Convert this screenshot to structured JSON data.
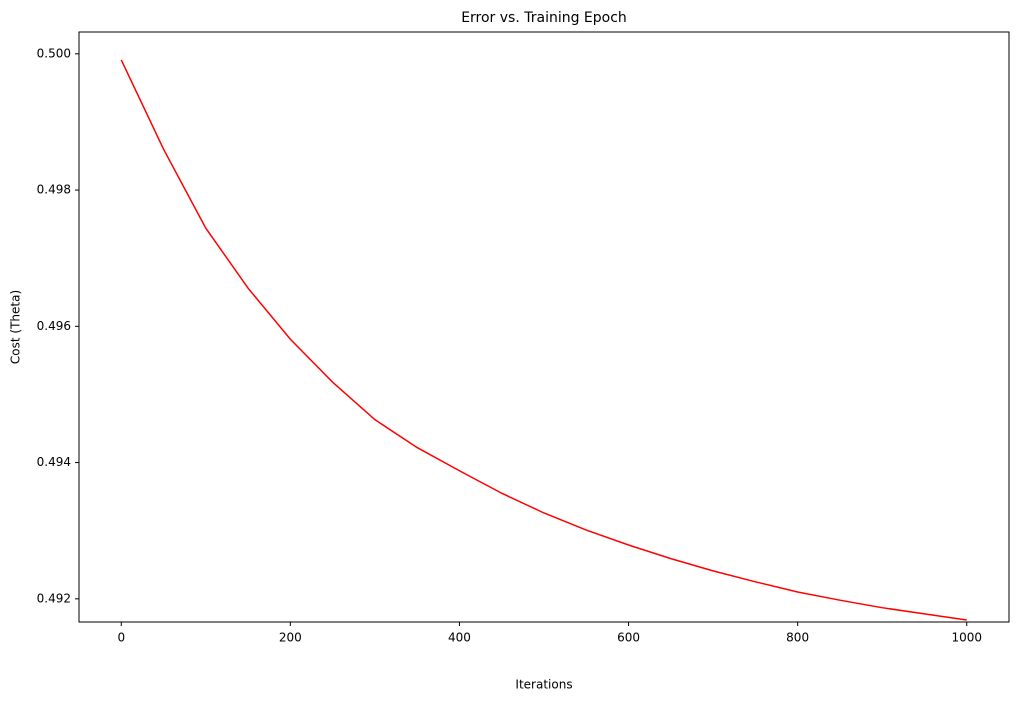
{
  "chart_data": {
    "type": "line",
    "title": "Error vs. Training Epoch",
    "x_label": "Iterations",
    "y_label": "Cost (Theta)",
    "x": [
      0,
      50,
      100,
      150,
      200,
      250,
      300,
      350,
      400,
      450,
      500,
      550,
      600,
      650,
      700,
      750,
      800,
      850,
      900,
      950,
      1000
    ],
    "series": [
      {
        "color": "#ff0000",
        "values": [
          0.49991,
          0.4986,
          0.49744,
          0.49656,
          0.49581,
          0.49518,
          0.49463,
          0.49422,
          0.49388,
          0.49355,
          0.49326,
          0.49301,
          0.49279,
          0.49259,
          0.49241,
          0.49225,
          0.4921,
          0.49198,
          0.49187,
          0.49178,
          0.49169
        ]
      }
    ],
    "xlim": [
      -50,
      1050
    ],
    "xticks": [
      0,
      200,
      400,
      600,
      800,
      1000
    ],
    "ylim": [
      0.49166,
      0.50032
    ],
    "yticks": [
      0.492,
      0.494,
      0.496,
      0.498,
      {
        "value": 0.5,
        "label": "0.500"
      }
    ],
    "grid": false
  }
}
